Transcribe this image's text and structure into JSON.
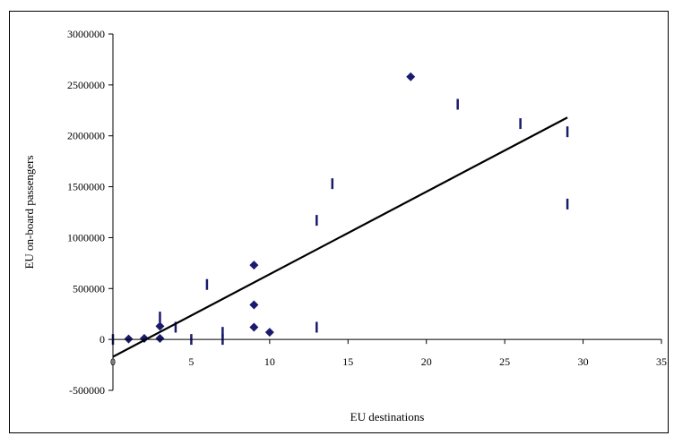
{
  "chart_data": {
    "type": "scatter",
    "title": "",
    "xlabel": "EU destinations",
    "ylabel": "EU on-board passengers",
    "xlim": [
      0,
      35
    ],
    "ylim": [
      -500000,
      3000000
    ],
    "x_ticks": [
      0,
      5,
      10,
      15,
      20,
      25,
      30,
      35
    ],
    "y_ticks": [
      -500000,
      0,
      500000,
      1000000,
      1500000,
      2000000,
      2500000,
      3000000
    ],
    "grid": false,
    "legend": "none",
    "colors": {
      "points": "#1a1a6e",
      "trendline": "#000000",
      "axis": "#000000"
    },
    "series": [
      {
        "marker": "diamond",
        "points": [
          {
            "x": 1,
            "y": 5000
          },
          {
            "x": 2,
            "y": 10000
          },
          {
            "x": 3,
            "y": 10000
          },
          {
            "x": 3,
            "y": 130000
          },
          {
            "x": 9,
            "y": 730000
          },
          {
            "x": 9,
            "y": 340000
          },
          {
            "x": 9,
            "y": 120000
          },
          {
            "x": 10,
            "y": 70000
          },
          {
            "x": 19,
            "y": 2580000
          }
        ]
      },
      {
        "marker": "vertical-bar",
        "points": [
          {
            "x": 0,
            "y": 0
          },
          {
            "x": 3,
            "y": 220000
          },
          {
            "x": 4,
            "y": 120000
          },
          {
            "x": 5,
            "y": 0
          },
          {
            "x": 6,
            "y": 540000
          },
          {
            "x": 7,
            "y": 70000
          },
          {
            "x": 7,
            "y": 0
          },
          {
            "x": 13,
            "y": 1170000
          },
          {
            "x": 13,
            "y": 120000
          },
          {
            "x": 14,
            "y": 1530000
          },
          {
            "x": 22,
            "y": 2310000
          },
          {
            "x": 26,
            "y": 2120000
          },
          {
            "x": 29,
            "y": 2040000
          },
          {
            "x": 29,
            "y": 1330000
          }
        ]
      }
    ],
    "trendline": {
      "x": [
        0,
        29
      ],
      "y": [
        -170000,
        2180000
      ]
    }
  }
}
